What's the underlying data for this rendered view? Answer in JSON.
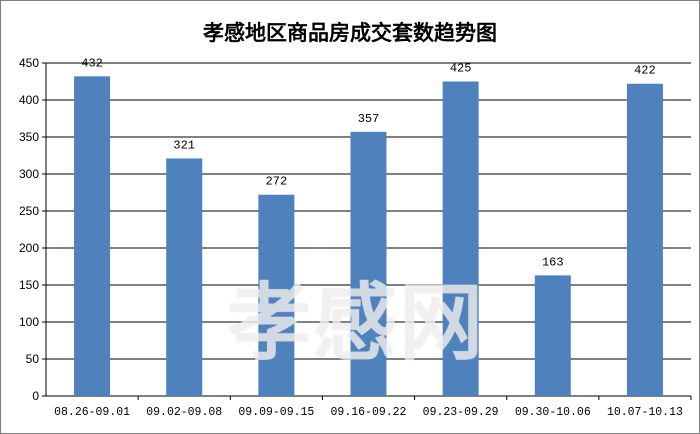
{
  "chart_data": {
    "type": "bar",
    "title": "孝感地区商品房成交套数趋势图",
    "categories": [
      "08.26-09.01",
      "09.02-09.08",
      "09.09-09.15",
      "09.16-09.22",
      "09.23-09.29",
      "09.30-10.06",
      "10.07-10.13"
    ],
    "values": [
      432,
      321,
      272,
      357,
      425,
      163,
      422
    ],
    "ylim": [
      0,
      450
    ],
    "yticks": [
      0,
      50,
      100,
      150,
      200,
      250,
      300,
      350,
      400,
      450
    ],
    "grid": true,
    "bar_color": "#4f81bd",
    "xlabel": "",
    "ylabel": ""
  },
  "watermark": "孝感网"
}
